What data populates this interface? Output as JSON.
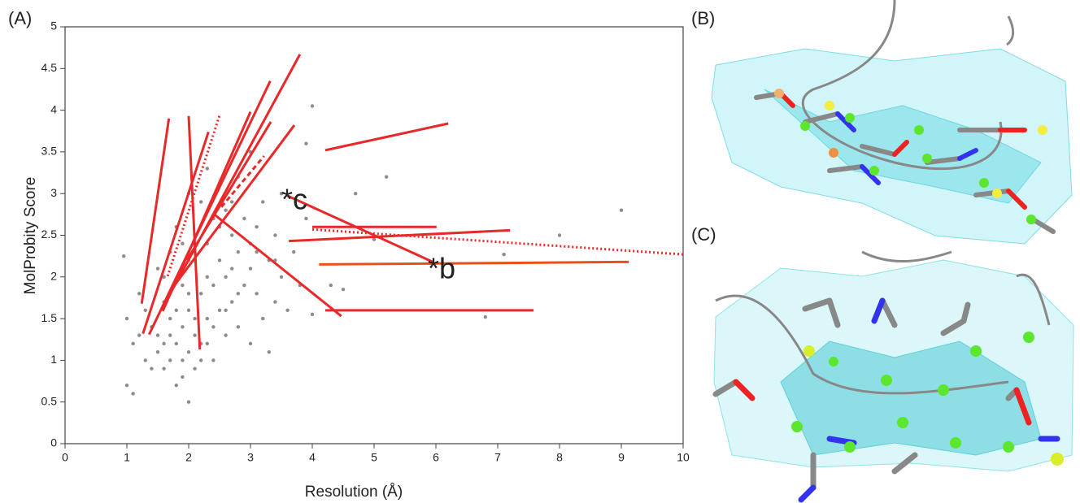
{
  "chart_data": {
    "type": "scatter",
    "panel_label": "(A)",
    "xlabel": "Resolution (Å)",
    "ylabel": "MolProbity Score",
    "xlim": [
      0,
      10
    ],
    "ylim": [
      0,
      5
    ],
    "xticks": [
      0,
      1,
      2,
      3,
      4,
      5,
      6,
      7,
      8,
      9,
      10
    ],
    "yticks": [
      0,
      0.5,
      1,
      1.5,
      2,
      2.5,
      3,
      3.5,
      4,
      4.5,
      5
    ],
    "points": {
      "color": "#8c8c8c",
      "x": [
        1.0,
        1.1,
        1.2,
        1.3,
        1.4,
        1.5,
        1.5,
        1.6,
        1.6,
        1.7,
        1.7,
        1.7,
        1.8,
        1.8,
        1.8,
        1.9,
        1.9,
        1.9,
        2.0,
        2.0,
        2.0,
        2.0,
        2.1,
        2.1,
        2.1,
        2.2,
        2.2,
        2.2,
        2.3,
        2.3,
        2.3,
        2.4,
        2.4,
        2.4,
        2.5,
        2.5,
        2.5,
        2.6,
        2.6,
        2.6,
        2.7,
        2.7,
        2.8,
        2.8,
        2.8,
        2.9,
        2.9,
        3.0,
        3.0,
        3.0,
        3.1,
        3.1,
        3.2,
        3.2,
        3.3,
        3.3,
        3.4,
        3.4,
        3.5,
        3.5,
        3.6,
        3.7,
        3.8,
        3.9,
        4.0,
        1.3,
        1.5,
        1.6,
        1.8,
        1.9,
        2.0,
        2.1,
        2.3,
        2.4,
        2.6,
        2.7,
        1.4,
        1.7,
        1.9,
        2.2,
        2.5,
        2.8,
        3.1,
        1.2,
        1.6,
        2.0,
        2.3,
        2.7,
        3.0,
        3.4,
        6.8,
        9.0,
        8.0,
        7.1,
        5.2,
        4.3,
        4.5,
        4.0,
        3.9,
        5.0,
        4.7,
        1.0,
        1.1,
        0.95
      ],
      "y": [
        1.5,
        1.2,
        1.8,
        1.0,
        1.4,
        2.1,
        1.1,
        1.7,
        0.9,
        1.3,
        2.3,
        1.0,
        1.6,
        2.6,
        1.2,
        0.8,
        1.9,
        1.4,
        1.1,
        2.2,
        3.0,
        1.6,
        1.3,
        2.5,
        0.9,
        1.8,
        2.9,
        1.2,
        1.5,
        2.4,
        3.3,
        1.9,
        1.0,
        2.7,
        1.6,
        2.2,
        3.1,
        1.3,
        2.0,
        2.8,
        1.7,
        2.5,
        1.4,
        2.3,
        3.2,
        1.9,
        2.7,
        1.2,
        2.1,
        3.5,
        1.8,
        2.6,
        1.5,
        2.9,
        2.2,
        1.1,
        2.5,
        1.7,
        2.0,
        3.0,
        1.6,
        2.3,
        1.9,
        2.7,
        1.55,
        1.6,
        1.3,
        2.0,
        0.7,
        1.0,
        1.8,
        1.5,
        2.0,
        1.4,
        1.6,
        2.1,
        0.9,
        1.5,
        2.4,
        1.0,
        2.6,
        1.8,
        2.3,
        1.3,
        1.2,
        0.5,
        1.2,
        2.9,
        2.4,
        2.2,
        1.52,
        2.8,
        2.5,
        2.27,
        3.2,
        1.9,
        1.85,
        4.05,
        3.6,
        2.45,
        3.0,
        0.7,
        0.6,
        2.25
      ]
    },
    "segments": [
      {
        "color": "#e8292a",
        "style": "solid",
        "x": [
          1.24,
          1.68
        ],
        "y": [
          1.68,
          3.9
        ]
      },
      {
        "color": "#e8292a",
        "style": "solid",
        "x": [
          1.26,
          2.32
        ],
        "y": [
          1.32,
          3.74
        ]
      },
      {
        "color": "#e8292a",
        "style": "solid",
        "x": [
          2.0,
          2.18
        ],
        "y": [
          3.93,
          1.13
        ]
      },
      {
        "color": "#e8292a",
        "style": "dotted",
        "x": [
          1.66,
          2.5
        ],
        "y": [
          2.01,
          3.94
        ]
      },
      {
        "color": "#e8292a",
        "style": "solid",
        "x": [
          1.36,
          3.32
        ],
        "y": [
          1.31,
          4.35
        ]
      },
      {
        "color": "#e8292a",
        "style": "solid",
        "x": [
          1.57,
          3.8
        ],
        "y": [
          1.62,
          4.67
        ]
      },
      {
        "color": "#e8292a",
        "style": "solid",
        "x": [
          1.58,
          3.0
        ],
        "y": [
          1.59,
          3.98
        ]
      },
      {
        "color": "#e8292a",
        "style": "solid",
        "x": [
          1.76,
          3.71
        ],
        "y": [
          1.89,
          3.82
        ]
      },
      {
        "color": "#e8292a",
        "style": "solid",
        "x": [
          1.97,
          3.33
        ],
        "y": [
          2.2,
          3.86
        ]
      },
      {
        "color": "#e8292a",
        "style": "dashed",
        "x": [
          2.53,
          3.22
        ],
        "y": [
          2.84,
          3.45
        ]
      },
      {
        "color": "#e8292a",
        "style": "solid",
        "x": [
          4.21,
          6.2
        ],
        "y": [
          3.52,
          3.84
        ]
      },
      {
        "color": "#e8292a",
        "style": "solid",
        "x": [
          3.58,
          5.95
        ],
        "y": [
          2.98,
          2.18
        ]
      },
      {
        "color": "#e8292a",
        "style": "solid",
        "x": [
          2.43,
          4.47
        ],
        "y": [
          2.74,
          1.53
        ]
      },
      {
        "color": "#e8292a",
        "style": "solid",
        "x": [
          4.0,
          6.01
        ],
        "y": [
          2.6,
          2.6
        ]
      },
      {
        "color": "#e8292a",
        "style": "solid",
        "x": [
          3.62,
          7.2
        ],
        "y": [
          2.43,
          2.56
        ]
      },
      {
        "color": "#e8292a",
        "style": "dotted",
        "x": [
          4.0,
          10
        ],
        "y": [
          2.57,
          2.27
        ]
      },
      {
        "color": "#e8501a",
        "style": "solid",
        "x": [
          4.11,
          9.12
        ],
        "y": [
          2.15,
          2.18
        ]
      },
      {
        "color": "#e8292a",
        "style": "solid",
        "x": [
          4.21,
          7.58
        ],
        "y": [
          1.6,
          1.6
        ]
      }
    ],
    "annotations": [
      {
        "text": "*c"
      },
      {
        "text": "*b"
      }
    ]
  },
  "panels": [
    {
      "label": "(B)"
    },
    {
      "label": "(C)"
    }
  ]
}
